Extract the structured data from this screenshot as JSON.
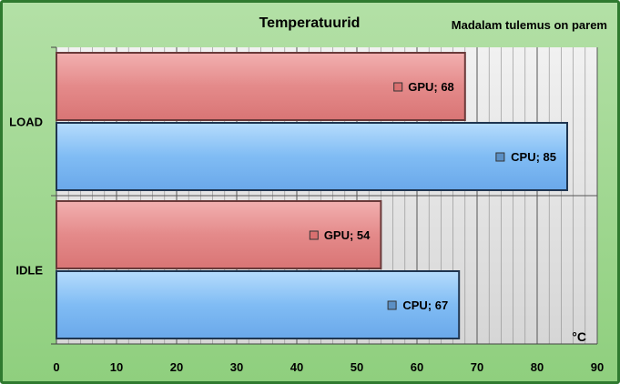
{
  "chart_data": {
    "type": "bar",
    "orientation": "horizontal",
    "title": "Temperatuurid",
    "subtitle": "Madalam tulemus on parem",
    "unit_label": "°C",
    "categories": [
      "LOAD",
      "IDLE"
    ],
    "series": [
      {
        "name": "GPU",
        "values": [
          68,
          54
        ],
        "color": "#e48a8a"
      },
      {
        "name": "CPU",
        "values": [
          85,
          67
        ],
        "color": "#7fb9f2"
      }
    ],
    "xlim": [
      0,
      90
    ],
    "x_ticks": [
      0,
      10,
      20,
      30,
      40,
      50,
      60,
      70,
      80,
      90
    ],
    "grid": true
  }
}
